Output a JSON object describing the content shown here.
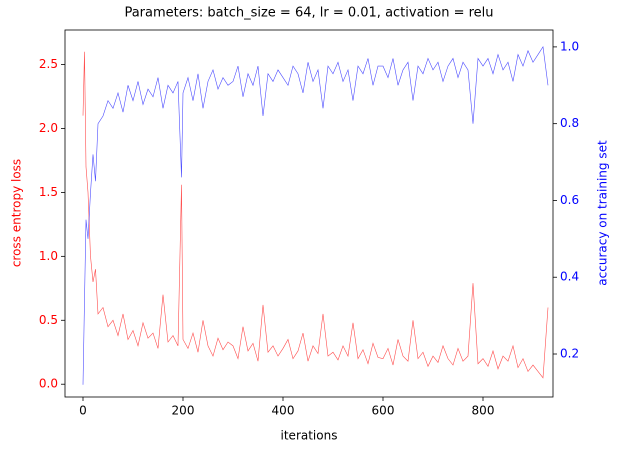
{
  "chart_data": {
    "type": "line",
    "title": "Parameters: batch_size = 64, lr = 0.01, activation = relu",
    "x_label": "iterations",
    "y_label": "cross entropy loss",
    "y2_label": "accuracy on training set",
    "x": [
      0,
      3,
      6,
      10,
      15,
      20,
      25,
      30,
      40,
      50,
      60,
      70,
      80,
      90,
      100,
      110,
      120,
      130,
      140,
      150,
      160,
      170,
      180,
      190,
      197,
      200,
      210,
      220,
      230,
      240,
      250,
      260,
      270,
      280,
      290,
      300,
      310,
      320,
      330,
      340,
      350,
      360,
      370,
      380,
      390,
      400,
      410,
      420,
      430,
      440,
      450,
      460,
      470,
      480,
      490,
      500,
      510,
      520,
      530,
      540,
      550,
      560,
      570,
      580,
      590,
      600,
      610,
      620,
      630,
      640,
      650,
      660,
      670,
      680,
      690,
      700,
      710,
      720,
      730,
      740,
      750,
      760,
      770,
      780,
      790,
      800,
      810,
      820,
      830,
      840,
      850,
      860,
      870,
      880,
      890,
      900,
      910,
      920,
      930
    ],
    "series": [
      {
        "name": "cross entropy loss",
        "color": "#ff0000",
        "values": [
          2.1,
          2.6,
          1.7,
          1.5,
          1.0,
          0.8,
          0.9,
          0.55,
          0.6,
          0.45,
          0.5,
          0.38,
          0.55,
          0.35,
          0.42,
          0.3,
          0.48,
          0.36,
          0.4,
          0.28,
          0.7,
          0.33,
          0.38,
          0.3,
          1.56,
          0.35,
          0.28,
          0.4,
          0.25,
          0.5,
          0.3,
          0.22,
          0.36,
          0.27,
          0.33,
          0.3,
          0.2,
          0.45,
          0.26,
          0.32,
          0.18,
          0.62,
          0.25,
          0.3,
          0.22,
          0.28,
          0.35,
          0.2,
          0.26,
          0.4,
          0.18,
          0.3,
          0.24,
          0.55,
          0.22,
          0.25,
          0.19,
          0.3,
          0.22,
          0.48,
          0.2,
          0.27,
          0.16,
          0.32,
          0.21,
          0.2,
          0.28,
          0.15,
          0.35,
          0.22,
          0.18,
          0.5,
          0.2,
          0.25,
          0.14,
          0.22,
          0.17,
          0.3,
          0.2,
          0.15,
          0.28,
          0.18,
          0.22,
          0.79,
          0.16,
          0.2,
          0.14,
          0.26,
          0.12,
          0.22,
          0.18,
          0.3,
          0.13,
          0.2,
          0.1,
          0.15,
          0.1,
          0.05,
          0.6
        ]
      },
      {
        "name": "accuracy on training set",
        "color": "#0000ff",
        "axis": "y2",
        "values": [
          0.12,
          0.34,
          0.55,
          0.5,
          0.62,
          0.72,
          0.65,
          0.8,
          0.82,
          0.86,
          0.84,
          0.88,
          0.83,
          0.9,
          0.86,
          0.91,
          0.85,
          0.89,
          0.87,
          0.92,
          0.84,
          0.9,
          0.88,
          0.91,
          0.66,
          0.88,
          0.92,
          0.86,
          0.93,
          0.84,
          0.91,
          0.94,
          0.89,
          0.92,
          0.9,
          0.91,
          0.95,
          0.87,
          0.93,
          0.9,
          0.95,
          0.82,
          0.93,
          0.91,
          0.94,
          0.92,
          0.9,
          0.95,
          0.93,
          0.88,
          0.96,
          0.91,
          0.94,
          0.84,
          0.95,
          0.93,
          0.96,
          0.91,
          0.94,
          0.86,
          0.95,
          0.93,
          0.97,
          0.9,
          0.95,
          0.95,
          0.92,
          0.97,
          0.9,
          0.94,
          0.96,
          0.86,
          0.95,
          0.93,
          0.97,
          0.94,
          0.96,
          0.91,
          0.95,
          0.97,
          0.92,
          0.96,
          0.94,
          0.8,
          0.97,
          0.95,
          0.97,
          0.93,
          0.98,
          0.94,
          0.96,
          0.91,
          0.98,
          0.95,
          0.99,
          0.96,
          0.98,
          1.0,
          0.9
        ]
      }
    ],
    "xlim": [
      -36,
      940
    ],
    "xticks": [
      0,
      200,
      400,
      600,
      800
    ],
    "ylim": [
      -0.1,
      2.77
    ],
    "yticks": [
      {
        "value": 0,
        "label": "0.0"
      },
      0.5,
      {
        "value": 1,
        "label": "1.0"
      },
      1.5,
      {
        "value": 2,
        "label": "2.0"
      },
      2.5
    ],
    "y2lim": [
      0.088,
      1.044
    ],
    "y2ticks": [
      0.2,
      0.4,
      0.6,
      0.8,
      {
        "value": 1,
        "label": "1.0"
      }
    ]
  }
}
